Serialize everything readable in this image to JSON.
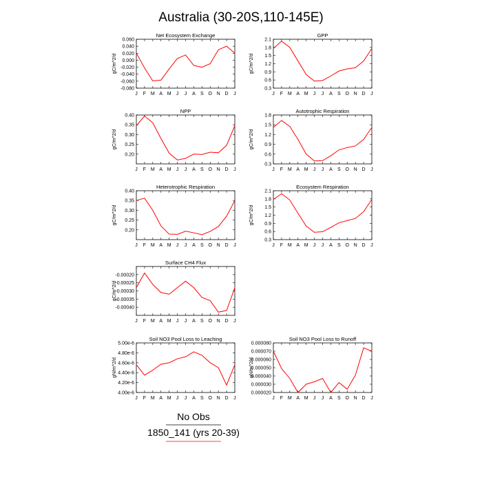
{
  "title": "Australia (30-20S,110-145E)",
  "legend": {
    "obs_label": "No Obs",
    "model_label": "1850_141 (yrs 20-39)",
    "model_color": "#ff0000",
    "obs_color": "#000000"
  },
  "chart_data": [
    {
      "type": "line",
      "title": "Net Ecosystem Exchange",
      "ylabel": "gC/m^2/d",
      "x": [
        "J",
        "F",
        "M",
        "A",
        "M",
        "J",
        "J",
        "A",
        "S",
        "O",
        "N",
        "D",
        "J"
      ],
      "ylim": [
        -0.08,
        0.06
      ],
      "yticks": [
        "0.060",
        "0.040",
        "0.020",
        "0.000",
        "-0.020",
        "-0.040",
        "-0.060",
        "-0.080"
      ],
      "series": [
        {
          "values": [
            0.02,
            -0.022,
            -0.059,
            -0.057,
            -0.025,
            0.005,
            0.015,
            -0.015,
            -0.02,
            -0.01,
            0.03,
            0.04,
            0.02
          ]
        }
      ]
    },
    {
      "type": "line",
      "title": "GPP",
      "ylabel": "gC/m^2/d",
      "x": [
        "J",
        "F",
        "M",
        "A",
        "M",
        "J",
        "J",
        "A",
        "S",
        "O",
        "N",
        "D",
        "J"
      ],
      "ylim": [
        0.3,
        2.1
      ],
      "yticks": [
        "2.1",
        "1.8",
        "1.5",
        "1.2",
        "0.9",
        "0.6",
        "0.3"
      ],
      "series": [
        {
          "values": [
            1.76,
            2.03,
            1.8,
            1.3,
            0.8,
            0.56,
            0.58,
            0.75,
            0.93,
            1.01,
            1.05,
            1.3,
            1.76
          ]
        }
      ]
    },
    {
      "type": "line",
      "title": "NPP",
      "ylabel": "gC/m^2/d",
      "x": [
        "J",
        "F",
        "M",
        "A",
        "M",
        "J",
        "J",
        "A",
        "S",
        "O",
        "N",
        "D",
        "J"
      ],
      "ylim": [
        0.15,
        0.4
      ],
      "yticks": [
        "0.40",
        "0.35",
        "0.30",
        "0.25",
        "0.20"
      ],
      "series": [
        {
          "values": [
            0.345,
            0.395,
            0.36,
            0.28,
            0.205,
            0.17,
            0.178,
            0.2,
            0.198,
            0.21,
            0.207,
            0.245,
            0.345
          ]
        }
      ]
    },
    {
      "type": "line",
      "title": "Autotrophic Respiration",
      "ylabel": "gC/m^2/d",
      "x": [
        "J",
        "F",
        "M",
        "A",
        "M",
        "J",
        "J",
        "A",
        "S",
        "O",
        "N",
        "D",
        "J"
      ],
      "ylim": [
        0.3,
        1.8
      ],
      "yticks": [
        "1.8",
        "1.5",
        "1.2",
        "0.9",
        "0.6",
        "0.3"
      ],
      "series": [
        {
          "values": [
            1.42,
            1.63,
            1.45,
            1.05,
            0.6,
            0.39,
            0.4,
            0.55,
            0.73,
            0.8,
            0.85,
            1.05,
            1.42
          ]
        }
      ]
    },
    {
      "type": "line",
      "title": "Heterotrophic Respiration",
      "ylabel": "gC/m^2/d",
      "x": [
        "J",
        "F",
        "M",
        "A",
        "M",
        "J",
        "J",
        "A",
        "S",
        "O",
        "N",
        "D",
        "J"
      ],
      "ylim": [
        0.15,
        0.4
      ],
      "yticks": [
        "0.40",
        "0.35",
        "0.30",
        "0.25",
        "0.20"
      ],
      "series": [
        {
          "values": [
            0.35,
            0.362,
            0.3,
            0.22,
            0.178,
            0.177,
            0.193,
            0.185,
            0.175,
            0.192,
            0.217,
            0.27,
            0.35
          ]
        }
      ]
    },
    {
      "type": "line",
      "title": "Ecosystem Respiration",
      "ylabel": "gC/m^2/d",
      "x": [
        "J",
        "F",
        "M",
        "A",
        "M",
        "J",
        "J",
        "A",
        "S",
        "O",
        "N",
        "D",
        "J"
      ],
      "ylim": [
        0.3,
        2.1
      ],
      "yticks": [
        "2.1",
        "1.8",
        "1.5",
        "1.2",
        "0.9",
        "0.6",
        "0.3"
      ],
      "series": [
        {
          "values": [
            1.78,
            1.99,
            1.76,
            1.27,
            0.8,
            0.57,
            0.59,
            0.75,
            0.92,
            1.0,
            1.08,
            1.33,
            1.78
          ]
        }
      ]
    },
    {
      "type": "line",
      "title": "Surface CH4 Flux",
      "ylabel": "gC/m^2/d",
      "x": [
        "J",
        "F",
        "M",
        "A",
        "M",
        "J",
        "J",
        "A",
        "S",
        "O",
        "N",
        "D",
        "J"
      ],
      "ylim": [
        -0.00045,
        -0.00015
      ],
      "yticks": [
        "-0.00020",
        "-0.00025",
        "-0.00030",
        "-0.00035",
        "-0.00040"
      ],
      "series": [
        {
          "values": [
            -0.00028,
            -0.00019,
            -0.00026,
            -0.00031,
            -0.00032,
            -0.00028,
            -0.00024,
            -0.00028,
            -0.00034,
            -0.00036,
            -0.00043,
            -0.00042,
            -0.00028
          ]
        }
      ]
    },
    {
      "type": "line",
      "title": "Soil NO3 Pool Loss to Leaching",
      "ylabel": "gN/m^2/d",
      "x": [
        "J",
        "F",
        "M",
        "A",
        "M",
        "J",
        "J",
        "A",
        "S",
        "O",
        "N",
        "D",
        "J"
      ],
      "ylim": [
        4e-06,
        5e-06
      ],
      "yticks": [
        "5.00e-6",
        "4.80e-6",
        "4.60e-6",
        "4.40e-6",
        "4.20e-6",
        "4.00e-6"
      ],
      "series": [
        {
          "values": [
            4.56e-06,
            4.35e-06,
            4.45e-06,
            4.57e-06,
            4.6e-06,
            4.68e-06,
            4.72e-06,
            4.82e-06,
            4.75e-06,
            4.6e-06,
            4.5e-06,
            4.15e-06,
            4.56e-06
          ]
        }
      ]
    },
    {
      "type": "line",
      "title": "Soil NO3 Pool Loss to Runoff",
      "ylabel": "gN/m^2/d",
      "x": [
        "J",
        "F",
        "M",
        "A",
        "M",
        "J",
        "J",
        "A",
        "S",
        "O",
        "N",
        "D",
        "J"
      ],
      "ylim": [
        2e-05,
        8e-05
      ],
      "yticks": [
        "0.000080",
        "0.000070",
        "0.000060",
        "0.000050",
        "0.000040",
        "0.000030",
        "0.000020"
      ],
      "series": [
        {
          "values": [
            7e-05,
            4.9e-05,
            3.7e-05,
            2e-05,
            3e-05,
            3.3e-05,
            3.7e-05,
            2e-05,
            3.2e-05,
            2.4e-05,
            4.1e-05,
            7.4e-05,
            7e-05
          ]
        }
      ]
    }
  ]
}
